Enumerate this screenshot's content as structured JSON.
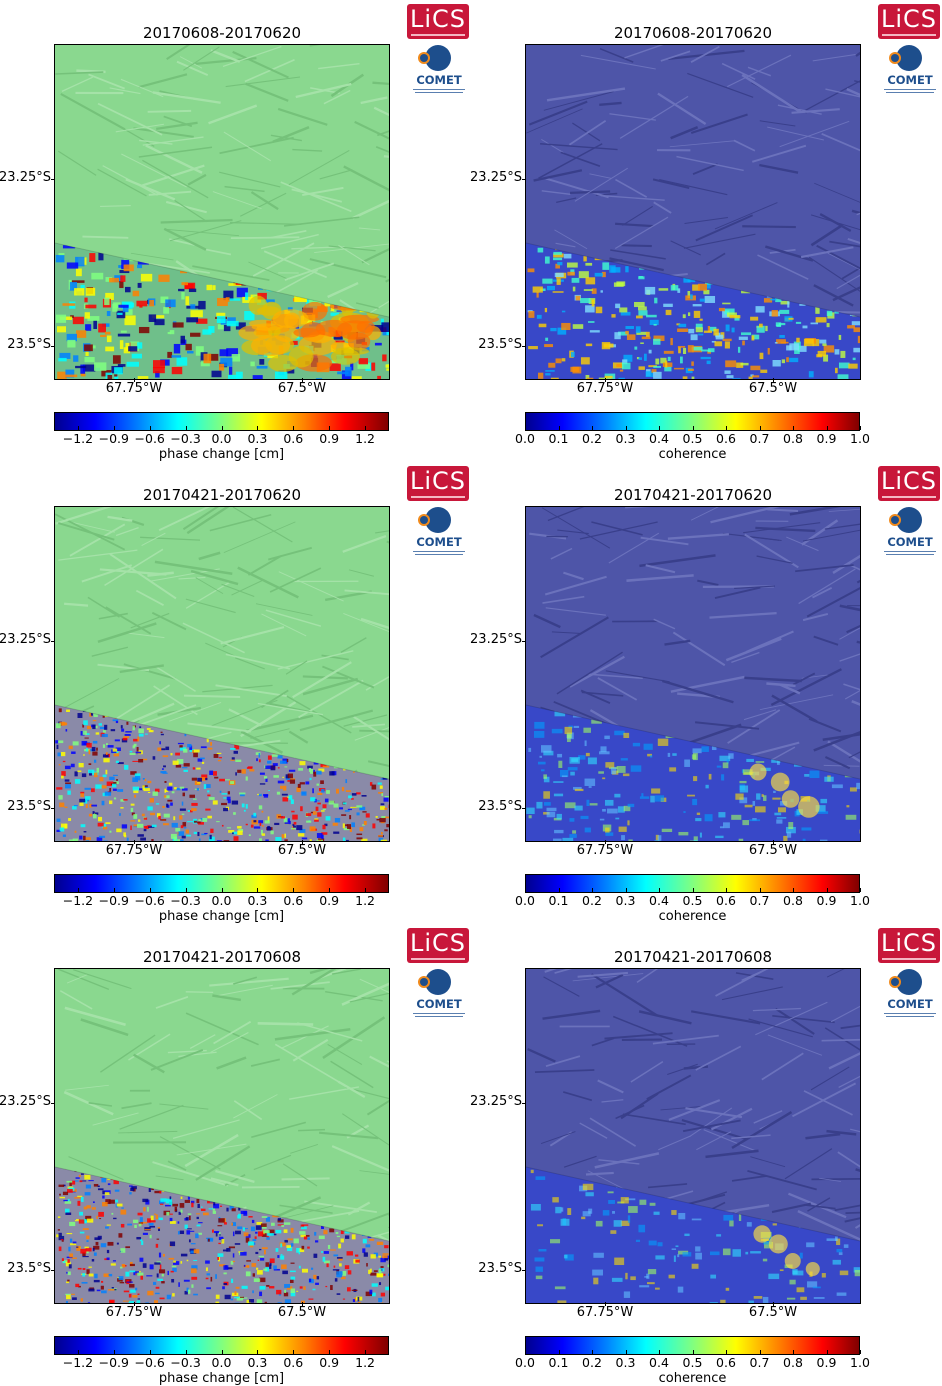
{
  "panels": [
    {
      "title": "20170608-20170620",
      "kind": "phase"
    },
    {
      "title": "20170608-20170620",
      "kind": "coherence"
    },
    {
      "title": "20170421-20170620",
      "kind": "phase"
    },
    {
      "title": "20170421-20170620",
      "kind": "coherence"
    },
    {
      "title": "20170421-20170608",
      "kind": "phase"
    },
    {
      "title": "20170421-20170608",
      "kind": "coherence"
    }
  ],
  "axes": {
    "lat_labels": [
      "23.25°S",
      "23.5°S"
    ],
    "lon_labels": [
      "67.75°W",
      "67.5°W"
    ]
  },
  "colorbars": {
    "phase": {
      "label": "phase change [cm]",
      "ticks": [
        "−1.2",
        "−0.9",
        "−0.6",
        "−0.3",
        "0.0",
        "0.3",
        "0.6",
        "0.9",
        "1.2"
      ],
      "range": [
        -1.4,
        1.4
      ]
    },
    "coherence": {
      "label": "coherence",
      "ticks": [
        "0.0",
        "0.1",
        "0.2",
        "0.3",
        "0.4",
        "0.5",
        "0.6",
        "0.7",
        "0.8",
        "0.9",
        "1.0"
      ],
      "range": [
        0.0,
        1.0
      ]
    }
  },
  "logos": {
    "lics": "LiCS",
    "comet": "COMET"
  },
  "colors": {
    "phase_background": "#8ad88f",
    "coherence_background": "#4e55a8",
    "lics_red": "#c8173a",
    "comet_blue": "#1d4e8c"
  }
}
